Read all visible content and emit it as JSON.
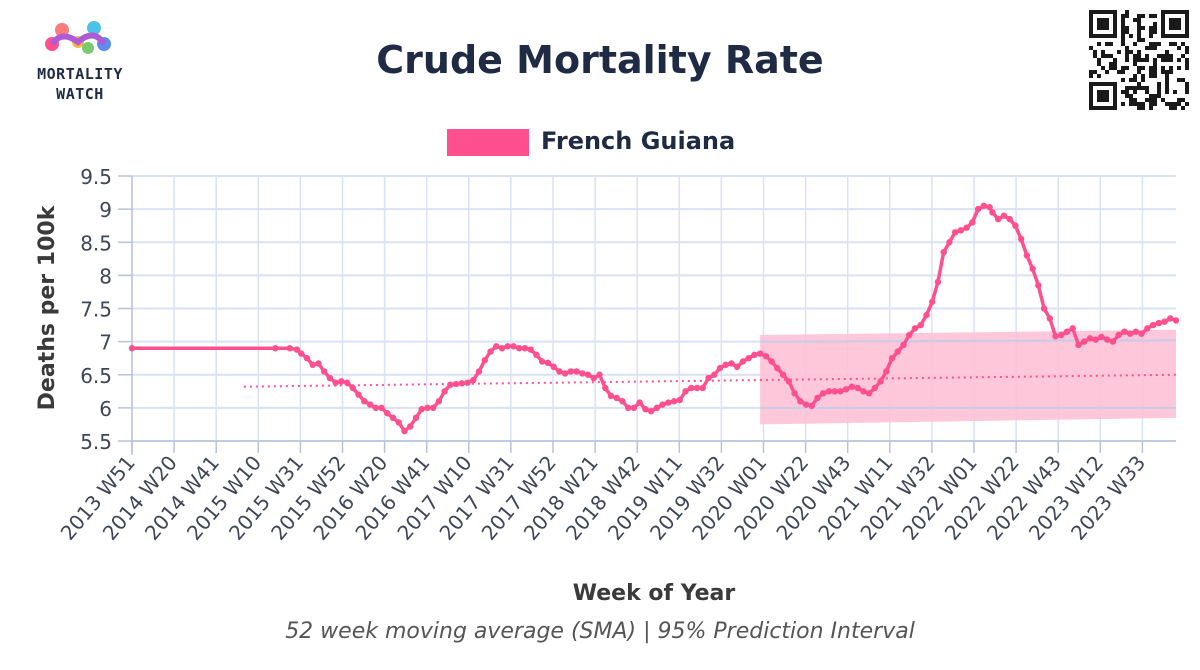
{
  "header": {
    "title": "Crude Mortality Rate",
    "logo_lines": [
      "MORTALITY",
      "WATCH"
    ]
  },
  "chart_data": {
    "type": "line",
    "title": "Crude Mortality Rate",
    "xlabel": "Week of Year",
    "ylabel": "Deaths per 100k",
    "caption": "52 week moving average (SMA) | 95% Prediction Interval",
    "legend": {
      "position": "top-center",
      "entries": [
        "French Guiana"
      ]
    },
    "ylim": [
      5.5,
      9.5
    ],
    "yticks": [
      "5.5",
      "6",
      "6.5",
      "7",
      "7.5",
      "8",
      "8.5",
      "9",
      "9.5"
    ],
    "x_tick_labels": [
      "2013 W51",
      "2014 W20",
      "2014 W41",
      "2015 W10",
      "2015 W31",
      "2015 W52",
      "2016 W20",
      "2016 W41",
      "2017 W10",
      "2017 W31",
      "2017 W52",
      "2018 W21",
      "2018 W42",
      "2019 W11",
      "2019 W32",
      "2020 W01",
      "2020 W22",
      "2020 W43",
      "2021 W11",
      "2021 W32",
      "2022 W01",
      "2022 W22",
      "2022 W43",
      "2023 W12",
      "2023 W33"
    ],
    "x_range": [
      "2013 W51",
      "2023 W50"
    ],
    "grid": true,
    "colors": {
      "series": "#ff4f8e",
      "band": "#ffc1d6",
      "grid": "#d9e1f5",
      "axis": "#1f2a44"
    },
    "series": [
      {
        "name": "French Guiana",
        "style": "line-markers",
        "points": [
          [
            0,
            6.9
          ],
          [
            100,
            6.9
          ],
          [
            110,
            6.9
          ],
          [
            115,
            6.88
          ],
          [
            118,
            6.82
          ],
          [
            122,
            6.75
          ],
          [
            126,
            6.65
          ],
          [
            130,
            6.67
          ],
          [
            134,
            6.55
          ],
          [
            138,
            6.45
          ],
          [
            142,
            6.38
          ],
          [
            146,
            6.4
          ],
          [
            150,
            6.38
          ],
          [
            154,
            6.3
          ],
          [
            158,
            6.2
          ],
          [
            162,
            6.1
          ],
          [
            166,
            6.05
          ],
          [
            170,
            6.0
          ],
          [
            174,
            6.0
          ],
          [
            178,
            5.92
          ],
          [
            182,
            5.85
          ],
          [
            186,
            5.78
          ],
          [
            190,
            5.65
          ],
          [
            194,
            5.72
          ],
          [
            198,
            5.85
          ],
          [
            202,
            5.98
          ],
          [
            206,
            6.0
          ],
          [
            210,
            6.0
          ],
          [
            214,
            6.1
          ],
          [
            218,
            6.25
          ],
          [
            222,
            6.35
          ],
          [
            226,
            6.36
          ],
          [
            230,
            6.37
          ],
          [
            234,
            6.38
          ],
          [
            238,
            6.42
          ],
          [
            242,
            6.55
          ],
          [
            246,
            6.72
          ],
          [
            250,
            6.85
          ],
          [
            254,
            6.93
          ],
          [
            258,
            6.9
          ],
          [
            262,
            6.93
          ],
          [
            266,
            6.93
          ],
          [
            270,
            6.9
          ],
          [
            274,
            6.9
          ],
          [
            278,
            6.88
          ],
          [
            282,
            6.8
          ],
          [
            286,
            6.7
          ],
          [
            290,
            6.68
          ],
          [
            294,
            6.62
          ],
          [
            298,
            6.55
          ],
          [
            302,
            6.52
          ],
          [
            306,
            6.55
          ],
          [
            310,
            6.55
          ],
          [
            314,
            6.52
          ],
          [
            318,
            6.5
          ],
          [
            322,
            6.45
          ],
          [
            326,
            6.5
          ],
          [
            330,
            6.3
          ],
          [
            334,
            6.18
          ],
          [
            338,
            6.15
          ],
          [
            342,
            6.1
          ],
          [
            346,
            6.0
          ],
          [
            350,
            6.0
          ],
          [
            354,
            6.08
          ],
          [
            358,
            5.98
          ],
          [
            362,
            5.95
          ],
          [
            366,
            6.0
          ],
          [
            370,
            6.05
          ],
          [
            374,
            6.08
          ],
          [
            378,
            6.1
          ],
          [
            382,
            6.12
          ],
          [
            386,
            6.25
          ],
          [
            390,
            6.3
          ],
          [
            394,
            6.3
          ],
          [
            398,
            6.3
          ],
          [
            402,
            6.45
          ],
          [
            406,
            6.5
          ],
          [
            410,
            6.6
          ],
          [
            414,
            6.65
          ],
          [
            418,
            6.67
          ],
          [
            422,
            6.62
          ],
          [
            426,
            6.7
          ],
          [
            430,
            6.75
          ],
          [
            434,
            6.8
          ],
          [
            438,
            6.82
          ],
          [
            442,
            6.78
          ],
          [
            446,
            6.7
          ],
          [
            450,
            6.6
          ],
          [
            454,
            6.5
          ],
          [
            458,
            6.4
          ],
          [
            462,
            6.22
          ],
          [
            466,
            6.1
          ],
          [
            470,
            6.05
          ],
          [
            474,
            6.03
          ],
          [
            478,
            6.15
          ],
          [
            482,
            6.22
          ],
          [
            486,
            6.25
          ],
          [
            490,
            6.25
          ],
          [
            494,
            6.25
          ],
          [
            498,
            6.28
          ],
          [
            502,
            6.32
          ],
          [
            506,
            6.3
          ],
          [
            510,
            6.25
          ],
          [
            514,
            6.22
          ],
          [
            518,
            6.3
          ],
          [
            522,
            6.4
          ],
          [
            526,
            6.55
          ],
          [
            530,
            6.75
          ],
          [
            534,
            6.85
          ],
          [
            538,
            6.95
          ],
          [
            542,
            7.1
          ],
          [
            546,
            7.2
          ],
          [
            550,
            7.25
          ],
          [
            554,
            7.4
          ],
          [
            558,
            7.6
          ],
          [
            562,
            7.9
          ],
          [
            566,
            8.35
          ],
          [
            570,
            8.5
          ],
          [
            574,
            8.65
          ],
          [
            578,
            8.68
          ],
          [
            582,
            8.72
          ],
          [
            586,
            8.8
          ],
          [
            590,
            9.0
          ],
          [
            594,
            9.05
          ],
          [
            598,
            9.03
          ],
          [
            600,
            8.95
          ],
          [
            604,
            8.85
          ],
          [
            608,
            8.9
          ],
          [
            612,
            8.85
          ],
          [
            616,
            8.75
          ],
          [
            620,
            8.55
          ],
          [
            624,
            8.3
          ],
          [
            628,
            8.1
          ],
          [
            632,
            7.85
          ],
          [
            636,
            7.5
          ],
          [
            640,
            7.35
          ],
          [
            644,
            7.08
          ],
          [
            648,
            7.1
          ],
          [
            652,
            7.15
          ],
          [
            656,
            7.2
          ],
          [
            660,
            6.95
          ],
          [
            664,
            7.0
          ],
          [
            668,
            7.05
          ],
          [
            672,
            7.03
          ],
          [
            676,
            7.07
          ],
          [
            680,
            7.03
          ],
          [
            684,
            7.0
          ],
          [
            688,
            7.1
          ],
          [
            692,
            7.15
          ],
          [
            696,
            7.12
          ],
          [
            700,
            7.15
          ],
          [
            704,
            7.12
          ],
          [
            708,
            7.2
          ],
          [
            712,
            7.25
          ],
          [
            716,
            7.28
          ],
          [
            720,
            7.3
          ],
          [
            724,
            7.35
          ],
          [
            728,
            7.32
          ]
        ]
      },
      {
        "name": "Baseline",
        "style": "dotted",
        "points": [
          [
            78,
            6.32
          ],
          [
            728,
            6.5
          ]
        ]
      }
    ],
    "prediction_interval": {
      "label": "95% Prediction Interval",
      "start": 438,
      "end": 728,
      "lower": [
        5.75,
        5.85
      ],
      "upper": [
        7.1,
        7.18
      ],
      "center_line": [
        7.0,
        7.02
      ],
      "lower_line": [
        6.0,
        6.0
      ]
    }
  }
}
